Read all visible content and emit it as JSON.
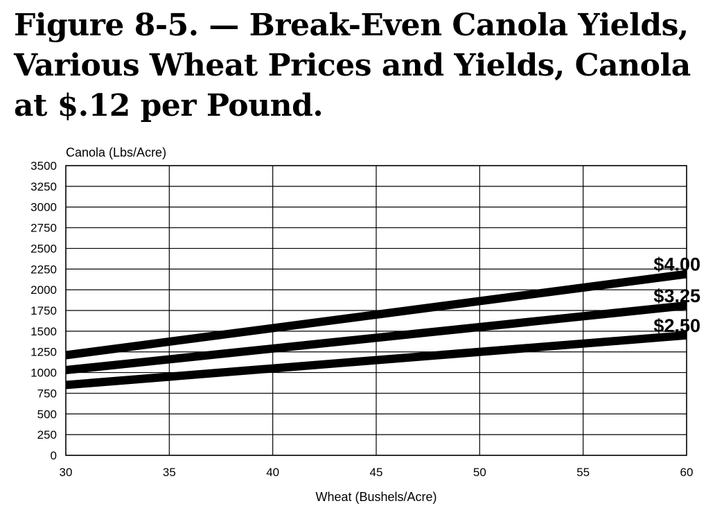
{
  "chart_data": {
    "type": "line",
    "title": "Figure 8-5. — Break-Even Canola Yields, Various Wheat Prices and Yields, Canola at $.12 per Pound.",
    "ylabel": "Canola (Lbs/Acre)",
    "xlabel": "Wheat (Bushels/Acre)",
    "xlim": [
      30,
      60
    ],
    "ylim": [
      0,
      3500
    ],
    "x_ticks": [
      "30",
      "35",
      "40",
      "45",
      "50",
      "55",
      "60"
    ],
    "y_ticks": [
      "0",
      "250",
      "500",
      "750",
      "1000",
      "1250",
      "1500",
      "1750",
      "2000",
      "2250",
      "2500",
      "2750",
      "3000",
      "3250",
      "3500"
    ],
    "grid": true,
    "legend": "line-end labels at right",
    "x": [
      30,
      60
    ],
    "series": [
      {
        "name": "$4.00",
        "values": [
          1210,
          2190
        ]
      },
      {
        "name": "$3.25",
        "values": [
          1030,
          1810
        ]
      },
      {
        "name": "$2.50",
        "values": [
          850,
          1450
        ]
      }
    ]
  }
}
